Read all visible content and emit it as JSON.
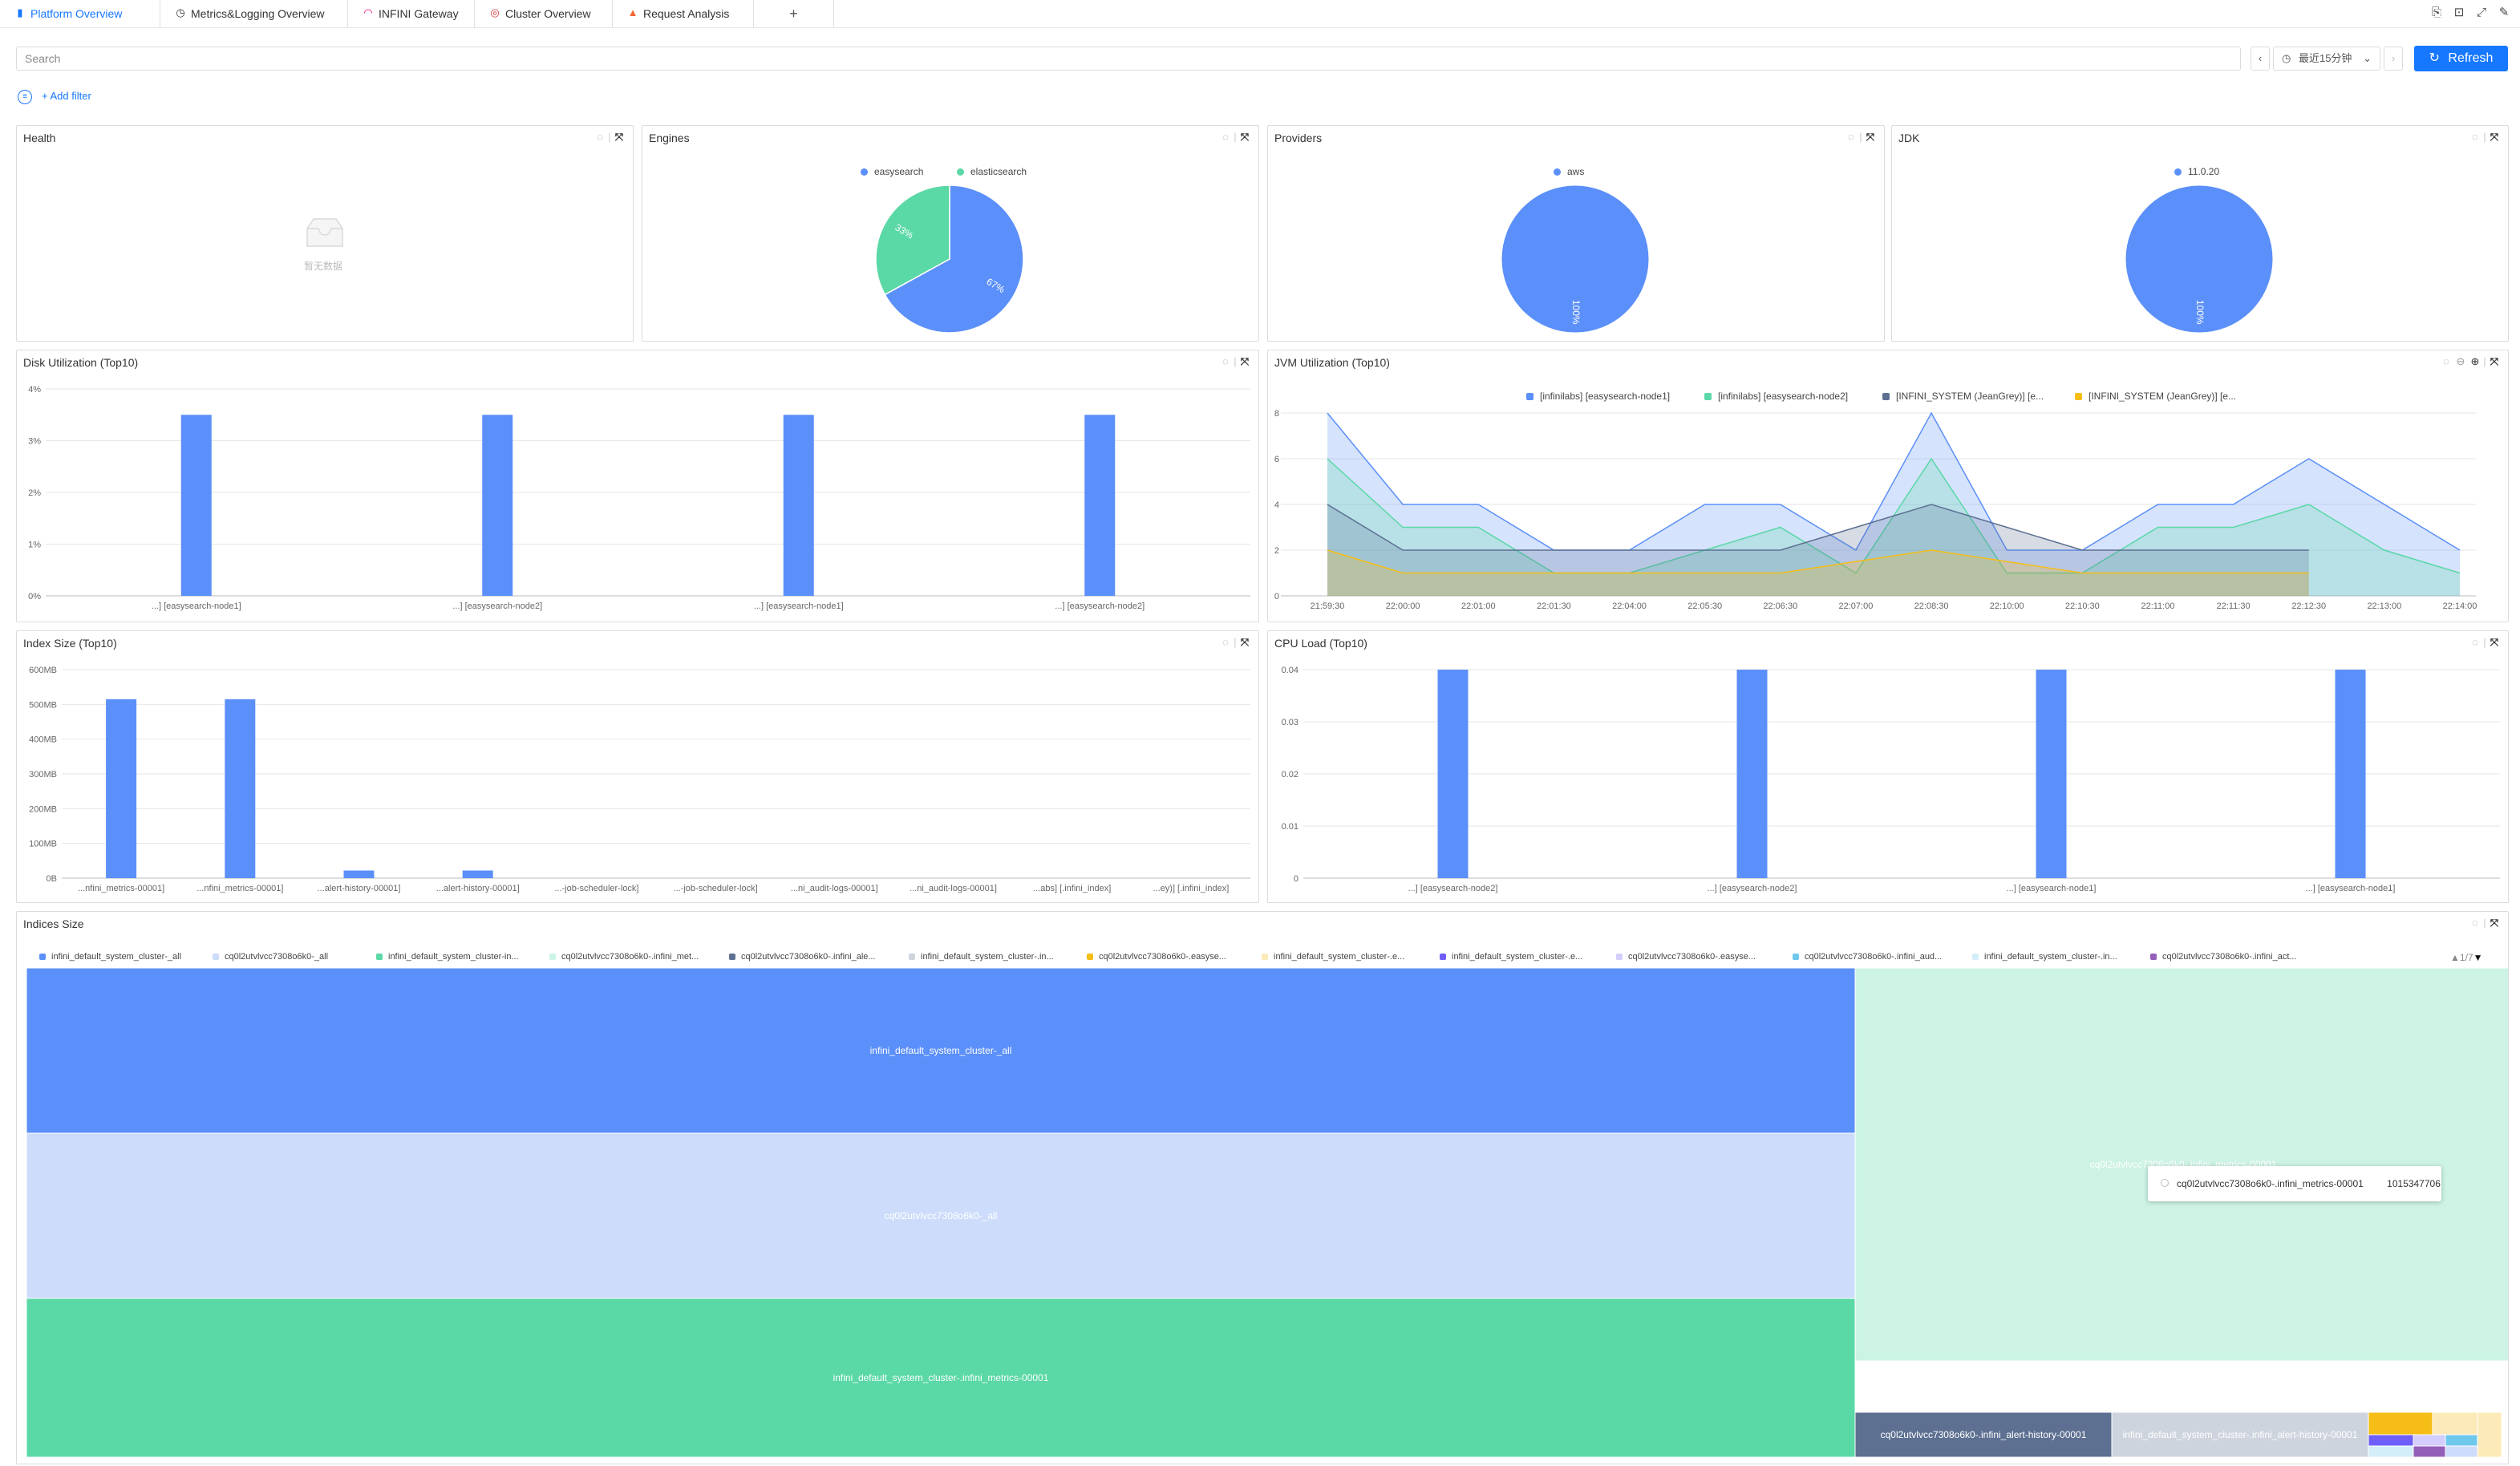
{
  "tabs": [
    {
      "label": "Platform Overview",
      "icon": "bar-icon",
      "active": true
    },
    {
      "label": "Metrics&Logging Overview",
      "icon": "gauge-icon"
    },
    {
      "label": "INFINI Gateway",
      "icon": "rainbow-icon"
    },
    {
      "label": "Cluster Overview",
      "icon": "target-icon"
    },
    {
      "label": "Request Analysis",
      "icon": "warning-icon"
    }
  ],
  "add_tab": "+",
  "search": {
    "placeholder": "Search"
  },
  "time_range": "最近15分钟",
  "refresh_label": "Refresh",
  "add_filter_label": "+ Add filter",
  "panels": {
    "health": {
      "title": "Health",
      "empty_text": "暂无数据"
    },
    "engines": {
      "title": "Engines"
    },
    "providers": {
      "title": "Providers"
    },
    "jdk": {
      "title": "JDK"
    },
    "disk": {
      "title": "Disk Utilization (Top10)"
    },
    "jvm": {
      "title": "JVM Utilization (Top10)"
    },
    "index_size": {
      "title": "Index Size (Top10)"
    },
    "cpu": {
      "title": "CPU Load (Top10)"
    },
    "indices": {
      "title": "Indices Size",
      "pager": "1/7"
    }
  },
  "chart_data": [
    {
      "id": "engines",
      "type": "pie",
      "labels": [
        "easysearch",
        "elasticsearch"
      ],
      "values": [
        67,
        33
      ],
      "slice_labels": [
        "67%",
        "33%"
      ],
      "colors": [
        "#5b8ff9",
        "#5ad8a6"
      ]
    },
    {
      "id": "providers",
      "type": "pie",
      "labels": [
        "aws"
      ],
      "values": [
        100
      ],
      "slice_labels": [
        "100%"
      ],
      "colors": [
        "#5b8ff9"
      ]
    },
    {
      "id": "jdk",
      "type": "pie",
      "labels": [
        "11.0.20"
      ],
      "values": [
        100
      ],
      "slice_labels": [
        "100%"
      ],
      "colors": [
        "#5b8ff9"
      ]
    },
    {
      "id": "disk",
      "type": "bar",
      "categories": [
        "...] [easysearch-node1]",
        "...] [easysearch-node2]",
        "...] [easysearch-node1]",
        "...] [easysearch-node2]"
      ],
      "values": [
        3.5,
        3.5,
        3.5,
        3.5
      ],
      "yticks": [
        "0%",
        "1%",
        "2%",
        "3%",
        "4%"
      ],
      "ylim": [
        0,
        4
      ]
    },
    {
      "id": "jvm",
      "type": "area",
      "x": [
        "21:59:30",
        "22:00:00",
        "22:01:00",
        "22:01:30",
        "22:04:00",
        "22:05:30",
        "22:06:30",
        "22:07:00",
        "22:08:30",
        "22:10:00",
        "22:10:30",
        "22:11:00",
        "22:11:30",
        "22:12:30",
        "22:13:00",
        "22:14:00"
      ],
      "ylim": [
        0,
        8
      ],
      "yticks": [
        "0",
        "2",
        "4",
        "6",
        "8"
      ],
      "series": [
        {
          "name": "[infinilabs] [easysearch-node1]",
          "color": "#5b8ff9",
          "values": [
            8,
            4,
            4,
            2,
            2,
            4,
            4,
            2,
            8,
            2,
            2,
            4,
            4,
            6,
            4,
            2
          ]
        },
        {
          "name": "[infinilabs] [easysearch-node2]",
          "color": "#5ad8a6",
          "values": [
            6,
            3,
            3,
            1,
            1,
            2,
            3,
            1,
            6,
            1,
            1,
            3,
            3,
            4,
            2,
            1
          ]
        },
        {
          "name": "[INFINI_SYSTEM (JeanGrey)] [e...",
          "color": "#5d7092",
          "values": [
            4,
            2,
            2,
            2,
            2,
            2,
            2,
            3,
            4,
            3,
            2,
            2,
            2,
            2,
            null,
            null
          ]
        },
        {
          "name": "[INFINI_SYSTEM (JeanGrey)] [e...",
          "color": "#f6bd16",
          "values": [
            2,
            1,
            1,
            1,
            1,
            1,
            1,
            1.5,
            2,
            1.5,
            1,
            1,
            1,
            1,
            null,
            null
          ]
        }
      ]
    },
    {
      "id": "index_size",
      "type": "bar",
      "categories": [
        "...nfini_metrics-00001]",
        "...nfini_metrics-00001]",
        "...alert-history-00001]",
        "...alert-history-00001]",
        "...-job-scheduler-lock]",
        "...-job-scheduler-lock]",
        "...ni_audit-logs-00001]",
        "...ni_audit-logs-00001]",
        "...abs] [.infini_index]",
        "...ey)] [.infini_index]"
      ],
      "values": [
        515,
        515,
        22,
        22,
        0,
        0,
        0,
        0,
        0,
        0
      ],
      "yticks": [
        "0B",
        "100MB",
        "200MB",
        "300MB",
        "400MB",
        "500MB",
        "600MB"
      ],
      "ylim": [
        0,
        600
      ]
    },
    {
      "id": "cpu",
      "type": "bar",
      "categories": [
        "...] [easysearch-node2]",
        "...] [easysearch-node2]",
        "...] [easysearch-node1]",
        "...] [easysearch-node1]"
      ],
      "values": [
        0.04,
        0.04,
        0.04,
        0.04
      ],
      "yticks": [
        "0",
        "0.01",
        "0.02",
        "0.03",
        "0.04"
      ],
      "ylim": [
        0,
        0.04
      ]
    },
    {
      "id": "indices",
      "type": "heatmap",
      "legend": [
        {
          "name": "infini_default_system_cluster-_all",
          "color": "#5b8ff9"
        },
        {
          "name": "cq0l2utvlvcc7308o6k0-_all",
          "color": "#cddcfb"
        },
        {
          "name": "infini_default_system_cluster-in...",
          "color": "#5ad8a6"
        },
        {
          "name": "cq0l2utvlvcc7308o6k0-.infini_met...",
          "color": "#cdf3e4"
        },
        {
          "name": "cq0l2utvlvcc7308o6k0-.infini_ale...",
          "color": "#5d7092"
        },
        {
          "name": "infini_default_system_cluster-.in...",
          "color": "#ced4de"
        },
        {
          "name": "cq0l2utvlvcc7308o6k0-.easyse...",
          "color": "#f6bd16"
        },
        {
          "name": "infini_default_system_cluster-.e...",
          "color": "#fcebb9"
        },
        {
          "name": "infini_default_system_cluster-.e...",
          "color": "#6f5ef9"
        },
        {
          "name": "cq0l2utvlvcc7308o6k0-.easyse...",
          "color": "#d3cefd"
        },
        {
          "name": "cq0l2utvlvcc7308o6k0-.infini_aud...",
          "color": "#6dc8ec"
        },
        {
          "name": "infini_default_system_cluster-.in...",
          "color": "#d3eef9"
        },
        {
          "name": "cq0l2utvlvcc7308o6k0-.infini_act...",
          "color": "#945fb9"
        }
      ],
      "cells": [
        {
          "label": "infini_default_system_cluster-_all",
          "color": "#5b8ff9"
        },
        {
          "label": "cq0l2utvlvcc7308o6k0-_all",
          "color": "#cddcfb"
        },
        {
          "label": "infini_default_system_cluster-.infini_metrics-00001",
          "color": "#5ad8a6"
        },
        {
          "label": "cq0l2utvlvcc7308o6k0-.infini_metrics-00001",
          "color": "#cdf3e4"
        },
        {
          "label": "cq0l2utvlvcc7308o6k0-.infini_alert-history-00001",
          "color": "#5d7092"
        },
        {
          "label": "infini_default_system_cluster-.infini_alert-history-00001",
          "color": "#ced4de"
        }
      ],
      "tooltip": {
        "label": "cq0l2utvlvcc7308o6k0-.infini_metrics-00001",
        "value": "1015347706"
      }
    }
  ]
}
